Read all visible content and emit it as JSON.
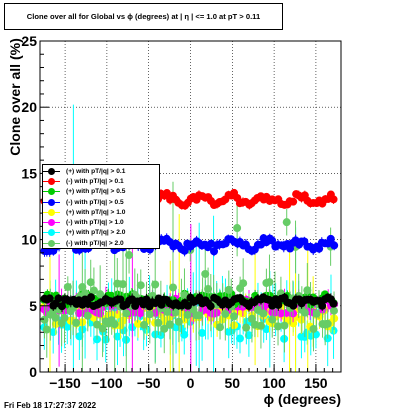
{
  "title": "Clone  over all for Global vs ϕ (degrees) at |  η | <= 1.0 at pT > 0.11",
  "datestamp": "Fri Feb 18 17:27:37 2022",
  "chart_data": {
    "type": "scatter",
    "title": "Clone  over all for Global vs ϕ (degrees) at |  η | <= 1.0 at pT > 0.11",
    "xlabel": "ϕ (degrees)",
    "ylabel": "Clone  over all (%)",
    "xlim": [
      -180,
      180
    ],
    "ylim": [
      0,
      25
    ],
    "xticks": [
      "−150",
      "−100",
      "−50",
      "0",
      "50",
      "100",
      "150"
    ],
    "xtick_values": [
      -150,
      -100,
      -50,
      0,
      50,
      100,
      150
    ],
    "yticks": [
      "0",
      "5",
      "10",
      "15",
      "20",
      "25"
    ],
    "ytick_values": [
      0,
      5,
      10,
      15,
      20,
      25
    ],
    "grid": true,
    "legend_position": "left",
    "series": [
      {
        "name": "(+) with pT/|q| > 0.1",
        "color": "#000000",
        "level": 5.3,
        "spread": 0.35,
        "err": 0.3
      },
      {
        "name": "(-) with pT/|q| > 0.1",
        "color": "#ff0000",
        "level": 13.0,
        "spread": 0.3,
        "err": 0.25
      },
      {
        "name": "(+) with pT/|q| > 0.5",
        "color": "#00cc00",
        "level": 5.5,
        "spread": 0.4,
        "err": 0.35
      },
      {
        "name": "(-) with pT/|q| > 0.5",
        "color": "#0000ff",
        "level": 9.6,
        "spread": 0.3,
        "err": 0.3
      },
      {
        "name": "(+) with pT/|q| > 1.0",
        "color": "#ffff00",
        "level": 4.2,
        "spread": 0.8,
        "err": 0.8
      },
      {
        "name": "(-) with pT/|q| > 1.0",
        "color": "#ff00ff",
        "level": 5.0,
        "spread": 0.6,
        "err": 0.6
      },
      {
        "name": "(+) with pT/|q| > 2.0",
        "color": "#00ffff",
        "level": 4.0,
        "spread": 1.6,
        "err": 1.5
      },
      {
        "name": "(-) with pT/|q| > 2.0",
        "color": "#66cc66",
        "level": 5.0,
        "spread": 1.8,
        "err": 1.5
      }
    ]
  }
}
